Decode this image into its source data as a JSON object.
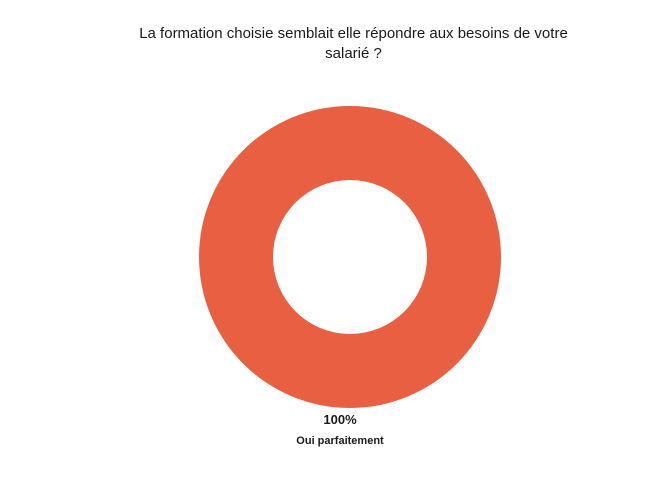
{
  "chart_data": {
    "type": "pie",
    "variant": "donut",
    "title_lines": [
      "La formation choisie semblait elle répondre aux besoins de votre",
      "salarié ?"
    ],
    "categories": [
      "Oui parfaitement"
    ],
    "values": [
      100
    ],
    "value_labels": [
      "100%"
    ],
    "colors": [
      "#E85F41"
    ],
    "legend": "none"
  }
}
